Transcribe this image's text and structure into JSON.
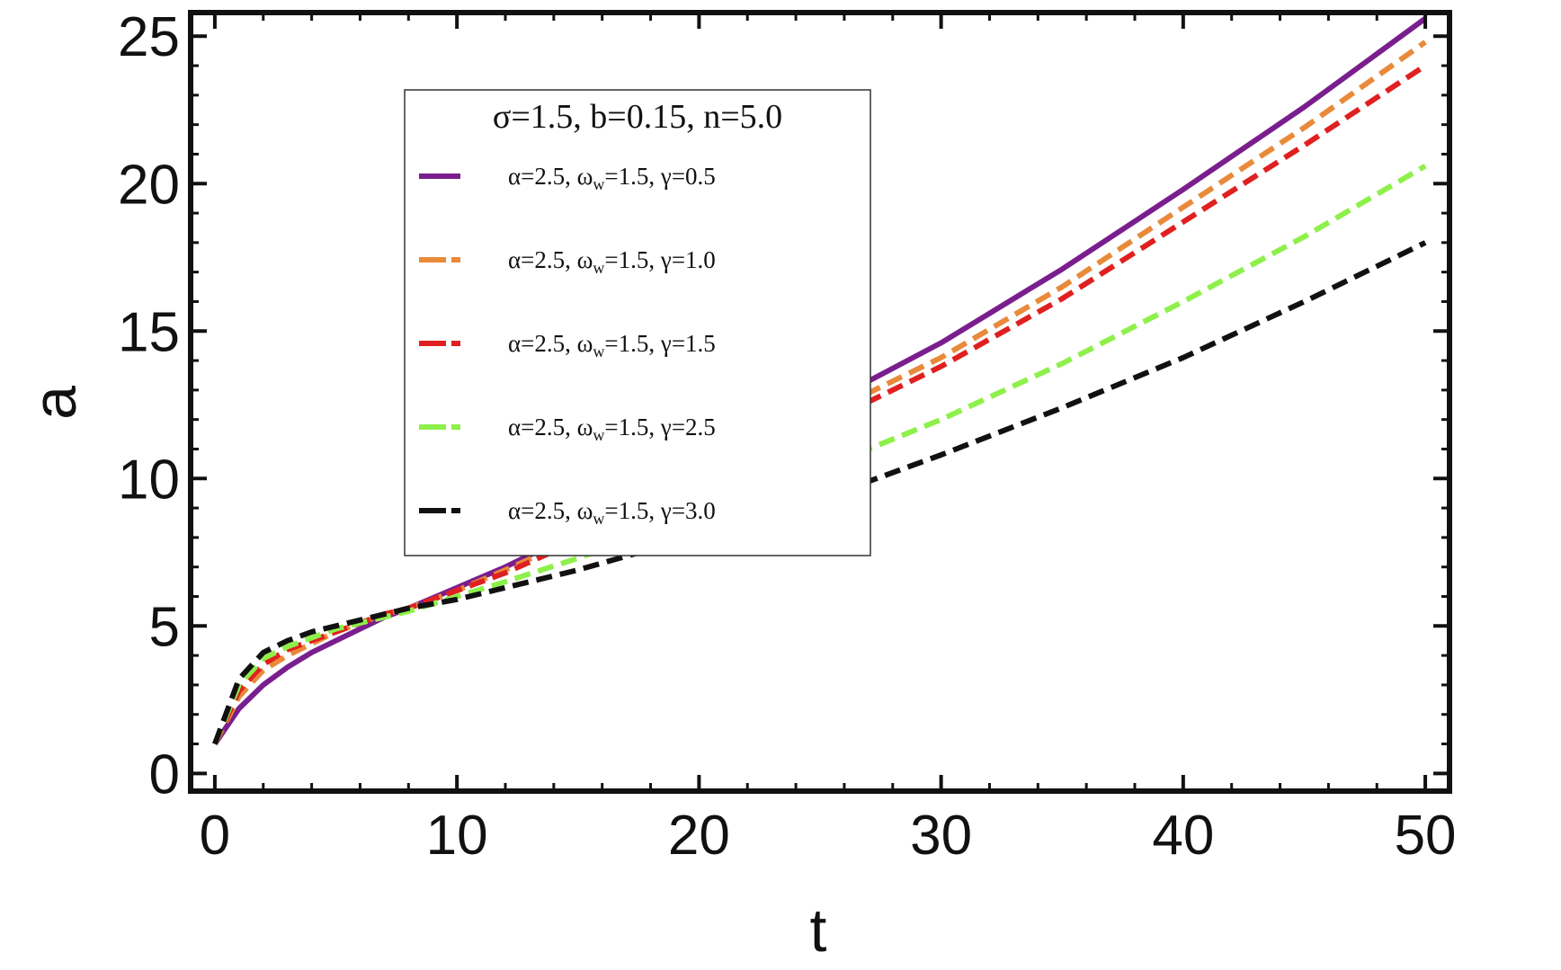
{
  "chart_data": {
    "type": "line",
    "xlabel": "t",
    "ylabel": "a",
    "xlim": [
      -1,
      51
    ],
    "ylim": [
      -0.6,
      25.8
    ],
    "xticks": [
      0,
      10,
      20,
      30,
      40,
      50
    ],
    "yticks": [
      0,
      5,
      10,
      15,
      20,
      25
    ],
    "x_tick_labels": [
      "0",
      "10",
      "20",
      "30",
      "40",
      "50"
    ],
    "y_tick_labels": [
      "0",
      "5",
      "10",
      "15",
      "20",
      "25"
    ],
    "grid": false,
    "legend_position": "top-left inside",
    "legend_title": "σ=1.5, b=0.15, n=5.0",
    "x": [
      0,
      1,
      2,
      3,
      4,
      5,
      6,
      7,
      8,
      10,
      12,
      15,
      18,
      20,
      25,
      27,
      30,
      35,
      40,
      45,
      50
    ],
    "series": [
      {
        "label_prefix": "α=2.5, ω",
        "label_sub": "w",
        "label_suffix": "=1.5, γ=0.5",
        "color": "#7a1e8e",
        "style": "solid",
        "values": [
          1.0,
          2.2,
          3.0,
          3.6,
          4.1,
          4.5,
          4.9,
          5.3,
          5.6,
          6.3,
          7.0,
          8.2,
          9.6,
          10.4,
          12.5,
          13.3,
          14.6,
          17.1,
          19.8,
          22.6,
          25.6
        ]
      },
      {
        "label_prefix": "α=2.5, ω",
        "label_sub": "w",
        "label_suffix": "=1.5, γ=1.0",
        "color": "#e88a3a",
        "style": "dashed",
        "values": [
          1.0,
          2.6,
          3.5,
          4.0,
          4.4,
          4.8,
          5.1,
          5.4,
          5.6,
          6.2,
          6.9,
          8.0,
          9.3,
          10.1,
          12.2,
          12.9,
          14.1,
          16.5,
          19.2,
          21.9,
          24.8
        ]
      },
      {
        "label_prefix": "α=2.5, ω",
        "label_sub": "w",
        "label_suffix": "=1.5, γ=1.5",
        "color": "#e02020",
        "style": "dashed",
        "values": [
          1.0,
          2.8,
          3.7,
          4.2,
          4.5,
          4.8,
          5.1,
          5.4,
          5.6,
          6.2,
          6.8,
          7.9,
          9.1,
          9.9,
          11.9,
          12.6,
          13.8,
          16.1,
          18.7,
          21.3,
          24.0
        ]
      },
      {
        "label_prefix": "α=2.5, ω",
        "label_sub": "w",
        "label_suffix": "=1.5, γ=2.5",
        "color": "#8ef04a",
        "style": "dashed",
        "values": [
          1.0,
          3.0,
          3.9,
          4.3,
          4.6,
          4.9,
          5.1,
          5.3,
          5.5,
          6.0,
          6.5,
          7.3,
          8.2,
          8.8,
          10.4,
          11.0,
          12.0,
          13.9,
          16.0,
          18.2,
          20.6
        ]
      },
      {
        "label_prefix": "α=2.5, ω",
        "label_sub": "w",
        "label_suffix": "=1.5, γ=3.0",
        "color": "#111111",
        "style": "dashed",
        "values": [
          1.0,
          3.2,
          4.1,
          4.5,
          4.8,
          5.0,
          5.2,
          5.4,
          5.6,
          5.9,
          6.3,
          6.9,
          7.6,
          8.1,
          9.4,
          9.9,
          10.8,
          12.4,
          14.1,
          16.0,
          18.0
        ]
      }
    ]
  }
}
